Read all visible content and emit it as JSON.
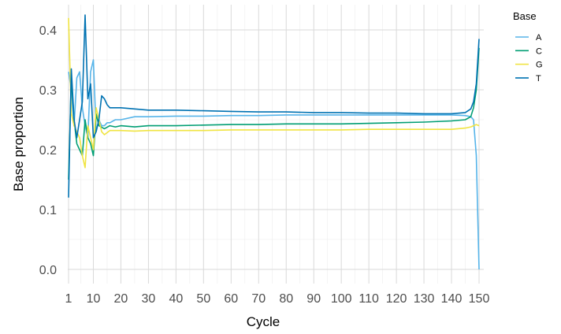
{
  "chart_data": {
    "type": "line",
    "xlabel": "Cycle",
    "ylabel": "Base proportion",
    "xlim": [
      1,
      150
    ],
    "ylim": [
      0,
      0.44
    ],
    "x_ticks": [
      1,
      10,
      20,
      30,
      40,
      50,
      60,
      70,
      80,
      90,
      100,
      110,
      120,
      130,
      140,
      150
    ],
    "x_tick_labels": [
      "1",
      "10",
      "20",
      "30",
      "40",
      "50",
      "60",
      "70",
      "80",
      "90",
      "100",
      "110",
      "120",
      "130",
      "140",
      "150"
    ],
    "y_ticks": [
      0,
      0.1,
      0.2,
      0.3,
      0.4
    ],
    "y_tick_labels": [
      "0.0",
      "0.1",
      "0.2",
      "0.3",
      "0.4"
    ],
    "grid": true,
    "legend": {
      "title": "Base",
      "position": "right"
    },
    "series": [
      {
        "name": "A",
        "color": "#56B4E9",
        "points": [
          [
            1,
            0.33
          ],
          [
            2,
            0.3
          ],
          [
            3,
            0.24
          ],
          [
            4,
            0.32
          ],
          [
            5,
            0.33
          ],
          [
            6,
            0.27
          ],
          [
            7,
            0.24
          ],
          [
            8,
            0.22
          ],
          [
            9,
            0.33
          ],
          [
            10,
            0.35
          ],
          [
            11,
            0.23
          ],
          [
            12,
            0.25
          ],
          [
            13,
            0.24
          ],
          [
            14,
            0.24
          ],
          [
            15,
            0.245
          ],
          [
            16,
            0.245
          ],
          [
            18,
            0.25
          ],
          [
            20,
            0.25
          ],
          [
            25,
            0.255
          ],
          [
            30,
            0.255
          ],
          [
            40,
            0.256
          ],
          [
            50,
            0.256
          ],
          [
            60,
            0.257
          ],
          [
            70,
            0.257
          ],
          [
            80,
            0.258
          ],
          [
            90,
            0.258
          ],
          [
            100,
            0.258
          ],
          [
            110,
            0.258
          ],
          [
            120,
            0.258
          ],
          [
            130,
            0.258
          ],
          [
            140,
            0.258
          ],
          [
            145,
            0.257
          ],
          [
            147,
            0.255
          ],
          [
            148,
            0.25
          ],
          [
            149,
            0.19
          ],
          [
            150,
            0.0
          ]
        ]
      },
      {
        "name": "C",
        "color": "#009E73",
        "points": [
          [
            1,
            0.15
          ],
          [
            2,
            0.32
          ],
          [
            3,
            0.25
          ],
          [
            4,
            0.21
          ],
          [
            5,
            0.2
          ],
          [
            6,
            0.19
          ],
          [
            7,
            0.25
          ],
          [
            8,
            0.22
          ],
          [
            9,
            0.21
          ],
          [
            10,
            0.19
          ],
          [
            11,
            0.26
          ],
          [
            12,
            0.24
          ],
          [
            14,
            0.235
          ],
          [
            16,
            0.24
          ],
          [
            18,
            0.238
          ],
          [
            20,
            0.24
          ],
          [
            25,
            0.238
          ],
          [
            30,
            0.24
          ],
          [
            40,
            0.24
          ],
          [
            50,
            0.241
          ],
          [
            60,
            0.242
          ],
          [
            70,
            0.242
          ],
          [
            80,
            0.243
          ],
          [
            90,
            0.243
          ],
          [
            100,
            0.243
          ],
          [
            110,
            0.244
          ],
          [
            120,
            0.245
          ],
          [
            130,
            0.246
          ],
          [
            140,
            0.248
          ],
          [
            145,
            0.25
          ],
          [
            147,
            0.255
          ],
          [
            148,
            0.27
          ],
          [
            149,
            0.3
          ],
          [
            150,
            0.37
          ]
        ]
      },
      {
        "name": "G",
        "color": "#F0E442",
        "points": [
          [
            1,
            0.42
          ],
          [
            2,
            0.26
          ],
          [
            3,
            0.24
          ],
          [
            4,
            0.23
          ],
          [
            5,
            0.22
          ],
          [
            6,
            0.19
          ],
          [
            7,
            0.17
          ],
          [
            8,
            0.24
          ],
          [
            9,
            0.22
          ],
          [
            10,
            0.2
          ],
          [
            11,
            0.27
          ],
          [
            12,
            0.25
          ],
          [
            13,
            0.23
          ],
          [
            14,
            0.225
          ],
          [
            16,
            0.232
          ],
          [
            18,
            0.232
          ],
          [
            20,
            0.232
          ],
          [
            25,
            0.231
          ],
          [
            30,
            0.232
          ],
          [
            40,
            0.232
          ],
          [
            50,
            0.232
          ],
          [
            60,
            0.233
          ],
          [
            70,
            0.233
          ],
          [
            80,
            0.233
          ],
          [
            90,
            0.233
          ],
          [
            100,
            0.233
          ],
          [
            110,
            0.234
          ],
          [
            120,
            0.234
          ],
          [
            130,
            0.234
          ],
          [
            140,
            0.234
          ],
          [
            145,
            0.236
          ],
          [
            147,
            0.238
          ],
          [
            148,
            0.24
          ],
          [
            149,
            0.242
          ],
          [
            150,
            0.24
          ]
        ]
      },
      {
        "name": "T",
        "color": "#0072B2",
        "points": [
          [
            1,
            0.12
          ],
          [
            2,
            0.335
          ],
          [
            3,
            0.25
          ],
          [
            4,
            0.22
          ],
          [
            5,
            0.25
          ],
          [
            6,
            0.28
          ],
          [
            7,
            0.425
          ],
          [
            8,
            0.285
          ],
          [
            9,
            0.31
          ],
          [
            10,
            0.22
          ],
          [
            11,
            0.23
          ],
          [
            12,
            0.25
          ],
          [
            13,
            0.29
          ],
          [
            14,
            0.285
          ],
          [
            15,
            0.275
          ],
          [
            16,
            0.27
          ],
          [
            18,
            0.27
          ],
          [
            20,
            0.27
          ],
          [
            25,
            0.268
          ],
          [
            30,
            0.266
          ],
          [
            40,
            0.266
          ],
          [
            50,
            0.265
          ],
          [
            60,
            0.264
          ],
          [
            70,
            0.263
          ],
          [
            80,
            0.263
          ],
          [
            90,
            0.262
          ],
          [
            100,
            0.262
          ],
          [
            110,
            0.261
          ],
          [
            120,
            0.261
          ],
          [
            130,
            0.26
          ],
          [
            140,
            0.26
          ],
          [
            145,
            0.262
          ],
          [
            147,
            0.268
          ],
          [
            148,
            0.28
          ],
          [
            149,
            0.31
          ],
          [
            150,
            0.385
          ]
        ]
      }
    ]
  }
}
